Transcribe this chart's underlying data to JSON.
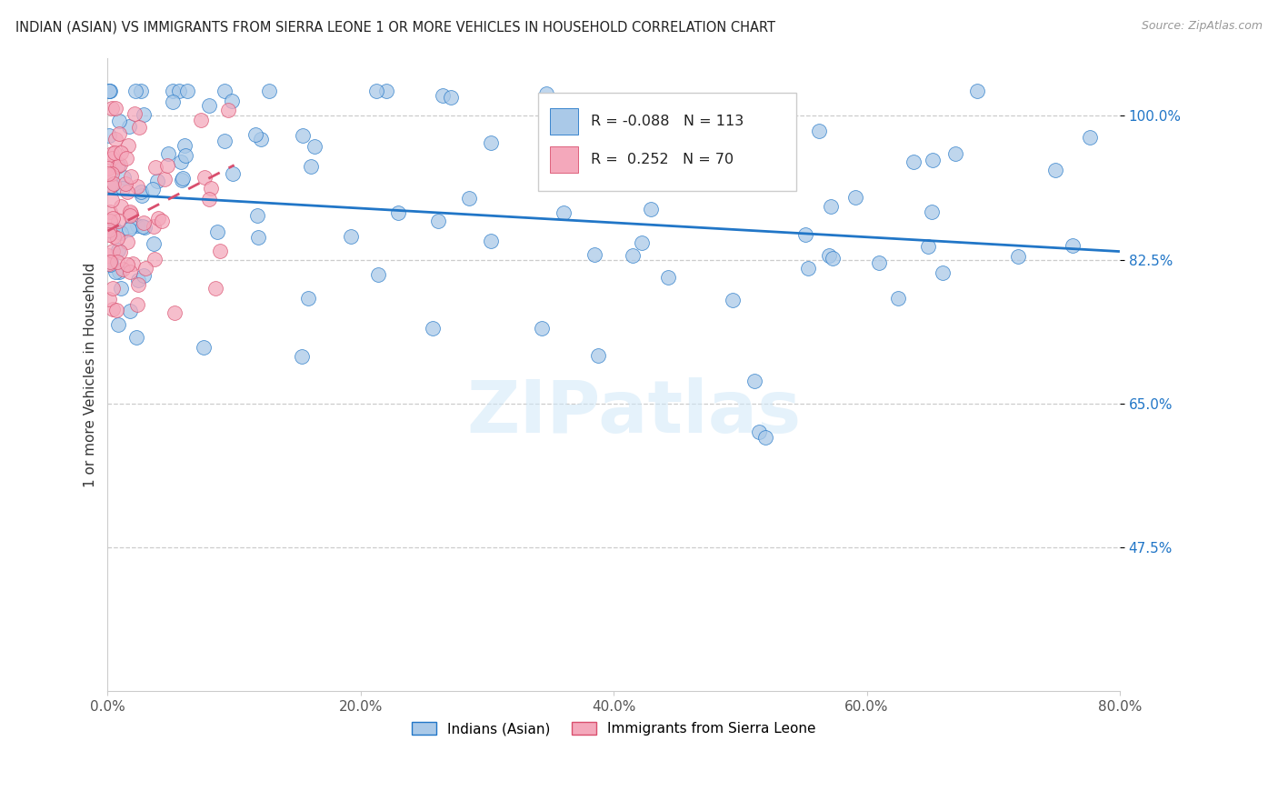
{
  "title": "INDIAN (ASIAN) VS IMMIGRANTS FROM SIERRA LEONE 1 OR MORE VEHICLES IN HOUSEHOLD CORRELATION CHART",
  "source": "Source: ZipAtlas.com",
  "ylabel": "1 or more Vehicles in Household",
  "xlim": [
    0.0,
    80.0
  ],
  "ylim": [
    30.0,
    107.0
  ],
  "yticks": [
    47.5,
    65.0,
    82.5,
    100.0
  ],
  "xticks": [
    0.0,
    20.0,
    40.0,
    60.0,
    80.0
  ],
  "blue_R": -0.088,
  "blue_N": 113,
  "pink_R": 0.252,
  "pink_N": 70,
  "blue_color": "#aac9e8",
  "pink_color": "#f4a8bb",
  "blue_line_color": "#2176c7",
  "pink_line_color": "#d94f6e",
  "watermark": "ZIPatlas",
  "legend_blue_label": "Indians (Asian)",
  "legend_pink_label": "Immigrants from Sierra Leone",
  "blue_trend_x0": 0.0,
  "blue_trend_y0": 90.5,
  "blue_trend_x1": 80.0,
  "blue_trend_y1": 83.5,
  "pink_trend_x0": 0.0,
  "pink_trend_y0": 86.0,
  "pink_trend_x1": 10.0,
  "pink_trend_y1": 94.0,
  "seed": 99
}
